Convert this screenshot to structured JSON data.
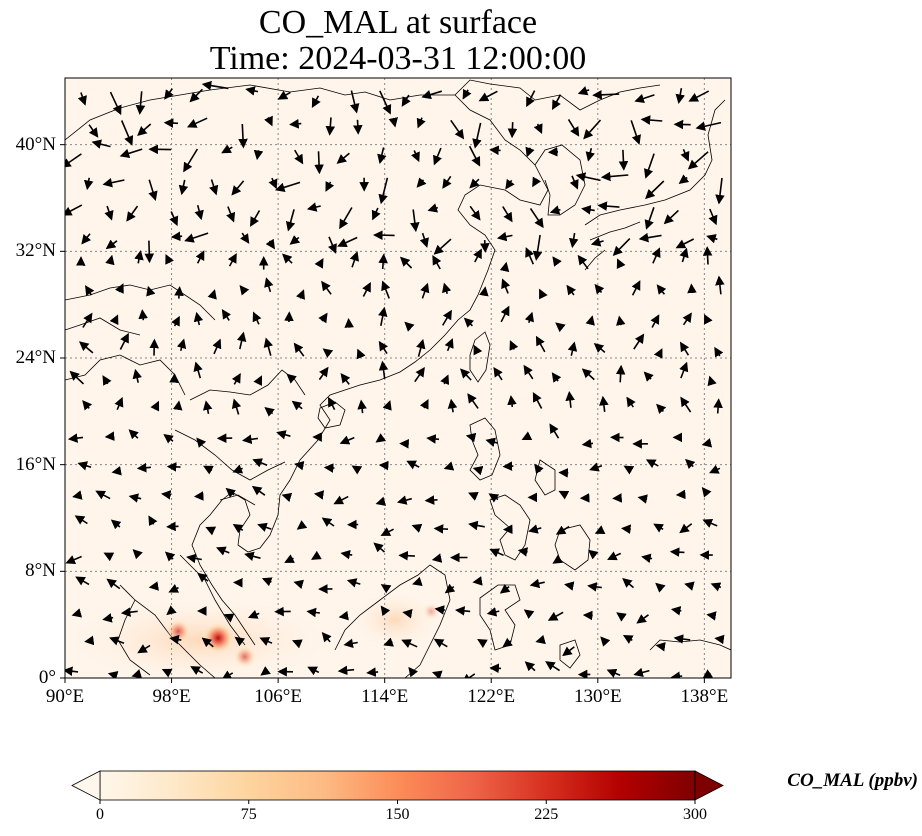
{
  "figure": {
    "title_line1": "CO_MAL at surface",
    "title_line2": "Time: 2024-03-31 12:00:00"
  },
  "map": {
    "lon_range": [
      90,
      140
    ],
    "lat_range": [
      0,
      45
    ],
    "x_ticks": [
      "90°E",
      "98°E",
      "106°E",
      "114°E",
      "122°E",
      "130°E",
      "138°E"
    ],
    "x_tick_values": [
      90,
      98,
      106,
      114,
      122,
      130,
      138
    ],
    "y_ticks": [
      "0°",
      "8°N",
      "16°N",
      "24°N",
      "32°N",
      "40°N"
    ],
    "y_tick_values": [
      0,
      8,
      16,
      24,
      32,
      40
    ],
    "gridlines": true,
    "background_color": "#fff5eb",
    "coastline_color": "#000000",
    "hotspots": [
      {
        "lon": 101.5,
        "lat": 3.0,
        "value": 220
      },
      {
        "lon": 98.5,
        "lat": 3.5,
        "value": 140
      },
      {
        "lon": 103.5,
        "lat": 1.6,
        "value": 120
      },
      {
        "lon": 117.5,
        "lat": 5.0,
        "value": 70
      }
    ],
    "wind_vectors": "quiver field of surface wind arrows (black)"
  },
  "colorbar": {
    "label": "CO_MAL (ppbv)",
    "ticks": [
      "0",
      "75",
      "150",
      "225",
      "300"
    ],
    "tick_values": [
      0,
      75,
      150,
      225,
      300
    ],
    "range": [
      0,
      300
    ],
    "extend": "both",
    "colormap": "OrRd",
    "colors": [
      "#fff7ec",
      "#fee8c8",
      "#fdd49e",
      "#fdbb84",
      "#fc8d59",
      "#ef6548",
      "#d7301f",
      "#b30000",
      "#7f0000"
    ]
  }
}
